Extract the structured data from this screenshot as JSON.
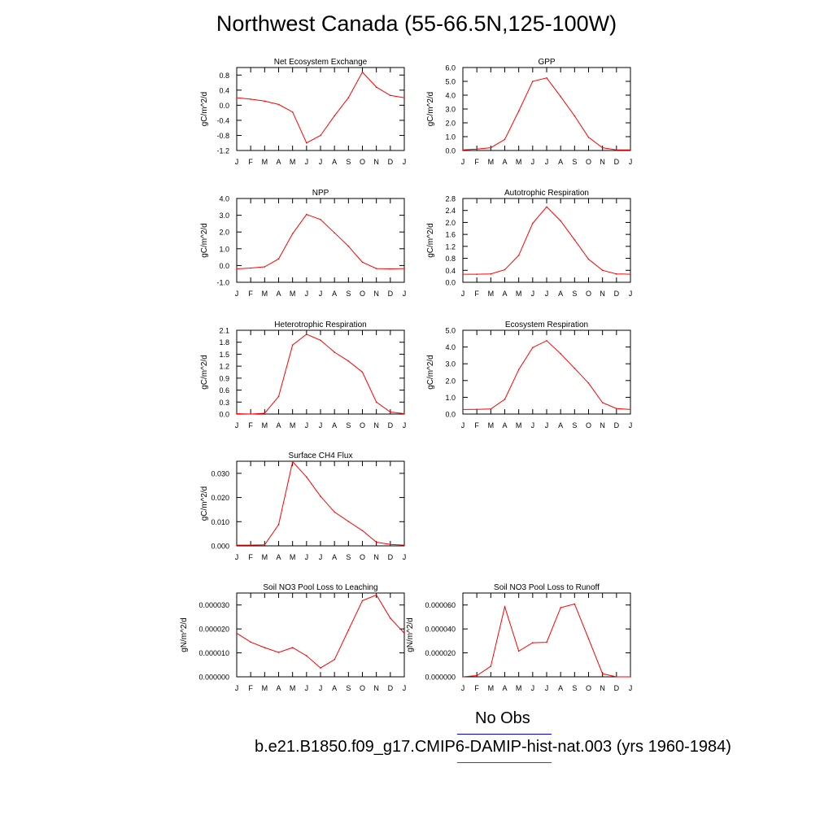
{
  "title": "Northwest Canada (55-66.5N,125-100W)",
  "colors": {
    "model": "#ff0000",
    "obs": "#0000ff",
    "axis": "#000000"
  },
  "legend": {
    "obs_label": "No Obs",
    "model_label": "b.e21.B1850.f09_g17.CMIP6-DAMIP-hist-nat.003 (yrs 1960-1984)"
  },
  "month_labels": [
    "J",
    "F",
    "M",
    "A",
    "M",
    "J",
    "J",
    "A",
    "S",
    "O",
    "N",
    "D",
    "J"
  ],
  "chart_data": [
    {
      "type": "line",
      "title": "Net Ecosystem Exchange",
      "ylabel": "gC/m^2/d",
      "ylim": [
        -1.2,
        1.0
      ],
      "yticks": [
        -1.2,
        -0.8,
        -0.4,
        0.0,
        0.4,
        0.8
      ],
      "yticklabels": [
        "-1.2",
        "-0.8",
        "-0.4",
        "0.0",
        "0.4",
        "0.8"
      ],
      "series": [
        {
          "values": [
            0.2,
            0.16,
            0.11,
            0.02,
            -0.18,
            -1.0,
            -0.8,
            -0.28,
            0.2,
            0.88,
            0.48,
            0.26,
            0.2
          ]
        }
      ]
    },
    {
      "type": "line",
      "title": "GPP",
      "ylabel": "gC/m^2/d",
      "ylim": [
        0,
        6.0
      ],
      "yticks": [
        0,
        1,
        2,
        3,
        4,
        5,
        6
      ],
      "yticklabels": [
        "0.0",
        "1.0",
        "2.0",
        "3.0",
        "4.0",
        "5.0",
        "6.0"
      ],
      "series": [
        {
          "values": [
            0.05,
            0.1,
            0.2,
            0.8,
            2.85,
            5.0,
            5.25,
            3.9,
            2.5,
            0.95,
            0.2,
            0.05,
            0.05
          ]
        }
      ]
    },
    {
      "type": "line",
      "title": "NPP",
      "ylabel": "gC/m^2/d",
      "ylim": [
        -1.0,
        4.0
      ],
      "yticks": [
        -1,
        0,
        1,
        2,
        3,
        4
      ],
      "yticklabels": [
        "-1.0",
        "0.0",
        "1.0",
        "2.0",
        "3.0",
        "4.0"
      ],
      "series": [
        {
          "values": [
            -0.2,
            -0.15,
            -0.08,
            0.4,
            1.9,
            3.05,
            2.75,
            1.95,
            1.15,
            0.2,
            -0.18,
            -0.2,
            -0.18
          ]
        }
      ]
    },
    {
      "type": "line",
      "title": "Autotrophic Respiration",
      "ylabel": "gC/m^2/d",
      "ylim": [
        0,
        2.8
      ],
      "yticks": [
        0,
        0.4,
        0.8,
        1.2,
        1.6,
        2.0,
        2.4,
        2.8
      ],
      "yticklabels": [
        "0.0",
        "0.4",
        "0.8",
        "1.2",
        "1.6",
        "2.0",
        "2.4",
        "2.8"
      ],
      "series": [
        {
          "values": [
            0.27,
            0.27,
            0.28,
            0.42,
            0.9,
            1.97,
            2.52,
            2.05,
            1.42,
            0.77,
            0.4,
            0.28,
            0.27
          ]
        }
      ]
    },
    {
      "type": "line",
      "title": "Heterotrophic Respiration",
      "ylabel": "gC/m^2/d",
      "ylim": [
        0,
        2.1
      ],
      "yticks": [
        0,
        0.3,
        0.6,
        0.9,
        1.2,
        1.5,
        1.8,
        2.1
      ],
      "yticklabels": [
        "0.0",
        "0.3",
        "0.6",
        "0.9",
        "1.2",
        "1.5",
        "1.8",
        "2.1"
      ],
      "series": [
        {
          "values": [
            0.01,
            0.0,
            0.02,
            0.44,
            1.73,
            2.0,
            1.85,
            1.55,
            1.33,
            1.05,
            0.3,
            0.05,
            0.01
          ]
        }
      ]
    },
    {
      "type": "line",
      "title": "Ecosystem Respiration",
      "ylabel": "gC/m^2/d",
      "ylim": [
        0,
        5.0
      ],
      "yticks": [
        0,
        1,
        2,
        3,
        4,
        5
      ],
      "yticklabels": [
        "0.0",
        "1.0",
        "2.0",
        "3.0",
        "4.0",
        "5.0"
      ],
      "series": [
        {
          "values": [
            0.27,
            0.28,
            0.3,
            0.88,
            2.65,
            3.97,
            4.38,
            3.6,
            2.73,
            1.85,
            0.68,
            0.33,
            0.27
          ]
        }
      ]
    },
    {
      "type": "line",
      "title": "Surface CH4 Flux",
      "ylabel": "gC/m^2/d",
      "ylim": [
        0,
        0.035
      ],
      "yticks": [
        0,
        0.01,
        0.02,
        0.03
      ],
      "yticklabels": [
        "0.000",
        "0.010",
        "0.020",
        "0.030"
      ],
      "series": [
        {
          "values": [
            0.0003,
            0.0003,
            0.0004,
            0.0088,
            0.0348,
            0.0285,
            0.0205,
            0.014,
            0.0101,
            0.0063,
            0.0015,
            0.0006,
            0.0003
          ]
        }
      ]
    },
    {
      "type": "line",
      "title": "Soil NO3 Pool Loss to Leaching",
      "ylabel": "gN/m^2/d",
      "ylim": [
        0,
        3.5e-05
      ],
      "yticks": [
        0,
        1e-05,
        2e-05,
        3e-05
      ],
      "yticklabels": [
        "0.000000",
        "0.000010",
        "0.000020",
        "0.000030"
      ],
      "series": [
        {
          "values": [
            1.82e-05,
            1.45e-05,
            1.22e-05,
            1.02e-05,
            1.22e-05,
            8.8e-06,
            3.7e-06,
            7.2e-06,
            1.95e-05,
            3.18e-05,
            3.42e-05,
            2.45e-05,
            1.82e-05
          ]
        }
      ]
    },
    {
      "type": "line",
      "title": "Soil NO3 Pool Loss to Runoff",
      "ylabel": "gN/m^2/d",
      "ylim": [
        0,
        7e-05
      ],
      "yticks": [
        0,
        2e-05,
        4e-05,
        6e-05
      ],
      "yticklabels": [
        "0.000000",
        "0.000020",
        "0.000040",
        "0.000060"
      ],
      "series": [
        {
          "values": [
            0.0,
            1e-06,
            8.8e-06,
            5.85e-05,
            2.15e-05,
            2.85e-05,
            2.88e-05,
            5.78e-05,
            6.08e-05,
            3.18e-05,
            2.5e-06,
            0.0,
            0.0
          ]
        }
      ]
    }
  ]
}
